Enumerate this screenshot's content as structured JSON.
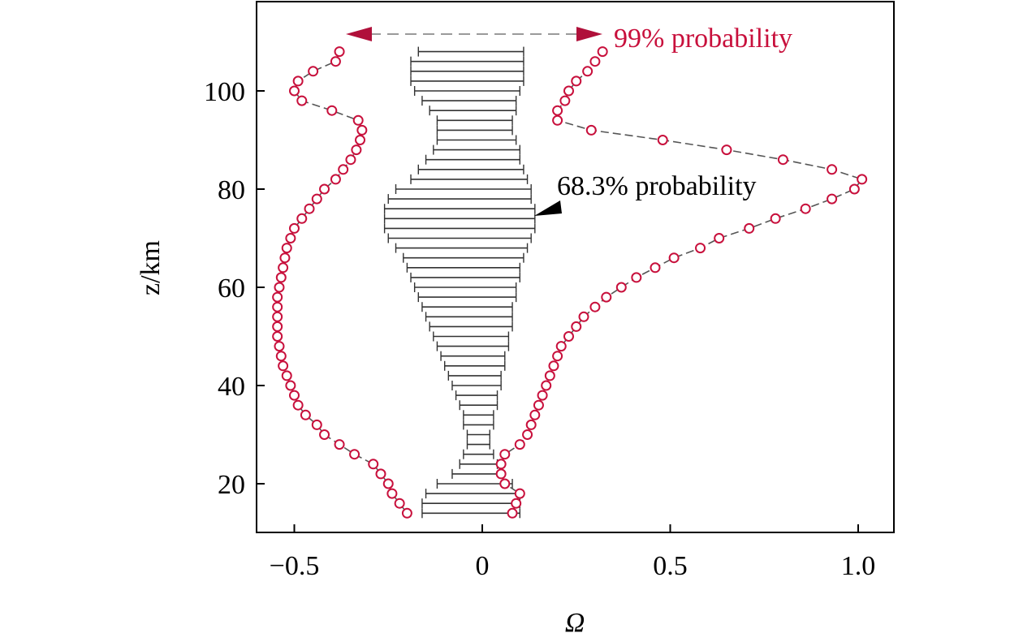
{
  "chart_data": {
    "type": "scatter",
    "title": "",
    "xlabel": "Ω",
    "ylabel": "z/km",
    "xlim": [
      -0.6,
      1.1
    ],
    "ylim": [
      10,
      114
    ],
    "x_ticks": [
      -0.5,
      0,
      0.5,
      1.0
    ],
    "x_tick_labels": [
      "−0.5",
      "0",
      "0.5",
      "1.0"
    ],
    "y_ticks": [
      20,
      40,
      60,
      80,
      100
    ],
    "y_tick_labels": [
      "20",
      "40",
      "60",
      "80",
      "100"
    ],
    "grid": false,
    "colors": {
      "outer": "#c8103c",
      "inner": "#000000",
      "arrow_line": "#999999"
    },
    "annotations": {
      "p99": "99% probability",
      "p683": "68.3% probability"
    },
    "band_683": {
      "z": [
        14,
        16,
        18,
        20,
        22,
        24,
        26,
        28,
        30,
        32,
        34,
        36,
        38,
        40,
        42,
        44,
        46,
        48,
        50,
        52,
        54,
        56,
        58,
        60,
        62,
        64,
        66,
        68,
        70,
        72,
        74,
        76,
        78,
        80,
        82,
        84,
        86,
        88,
        90,
        92,
        94,
        96,
        98,
        100,
        102,
        104,
        106,
        108
      ],
      "lower": [
        -0.16,
        -0.16,
        -0.15,
        -0.12,
        -0.08,
        -0.06,
        -0.05,
        -0.04,
        -0.04,
        -0.05,
        -0.05,
        -0.06,
        -0.07,
        -0.08,
        -0.09,
        -0.1,
        -0.11,
        -0.12,
        -0.13,
        -0.14,
        -0.15,
        -0.16,
        -0.17,
        -0.18,
        -0.19,
        -0.2,
        -0.21,
        -0.23,
        -0.25,
        -0.26,
        -0.26,
        -0.26,
        -0.25,
        -0.23,
        -0.19,
        -0.17,
        -0.15,
        -0.13,
        -0.12,
        -0.12,
        -0.12,
        -0.14,
        -0.16,
        -0.18,
        -0.19,
        -0.19,
        -0.19,
        -0.17
      ],
      "upper": [
        0.1,
        0.1,
        0.1,
        0.08,
        0.05,
        0.04,
        0.03,
        0.02,
        0.02,
        0.03,
        0.03,
        0.04,
        0.04,
        0.05,
        0.05,
        0.06,
        0.06,
        0.07,
        0.07,
        0.08,
        0.08,
        0.08,
        0.09,
        0.09,
        0.1,
        0.1,
        0.11,
        0.12,
        0.13,
        0.14,
        0.14,
        0.14,
        0.13,
        0.13,
        0.12,
        0.11,
        0.1,
        0.1,
        0.09,
        0.08,
        0.08,
        0.09,
        0.09,
        0.1,
        0.11,
        0.11,
        0.11,
        0.11
      ]
    },
    "series": [
      {
        "z": [
          14,
          16,
          18,
          20,
          22,
          24,
          26,
          28,
          30,
          32,
          34,
          36,
          38,
          40,
          42,
          44,
          46,
          48,
          50,
          52,
          54,
          56,
          58,
          60,
          62,
          64,
          66,
          68,
          70,
          72,
          74,
          76,
          78,
          80,
          82,
          84,
          86,
          88,
          90,
          92,
          94,
          96,
          98,
          100,
          102,
          104,
          106,
          108
        ],
        "values": [
          -0.2,
          -0.22,
          -0.24,
          -0.25,
          -0.27,
          -0.29,
          -0.34,
          -0.38,
          -0.42,
          -0.44,
          -0.47,
          -0.49,
          -0.5,
          -0.51,
          -0.52,
          -0.53,
          -0.535,
          -0.54,
          -0.545,
          -0.545,
          -0.545,
          -0.545,
          -0.545,
          -0.54,
          -0.535,
          -0.53,
          -0.525,
          -0.52,
          -0.51,
          -0.5,
          -0.48,
          -0.46,
          -0.44,
          -0.42,
          -0.39,
          -0.37,
          -0.35,
          -0.335,
          -0.325,
          -0.32,
          -0.33,
          -0.4,
          -0.48,
          -0.5,
          -0.49,
          -0.45,
          -0.39,
          -0.38
        ]
      },
      {
        "z": [
          14,
          16,
          18,
          20,
          22,
          24,
          26,
          28,
          30,
          32,
          34,
          36,
          38,
          40,
          42,
          44,
          46,
          48,
          50,
          52,
          54,
          56,
          58,
          60,
          62,
          64,
          66,
          68,
          70,
          72,
          74,
          76,
          78,
          80,
          82,
          84,
          86,
          88,
          90,
          92,
          94,
          96,
          98,
          100,
          102,
          104,
          106,
          108
        ],
        "values": [
          0.08,
          0.09,
          0.1,
          0.06,
          0.05,
          0.05,
          0.06,
          0.1,
          0.12,
          0.13,
          0.14,
          0.15,
          0.16,
          0.17,
          0.18,
          0.19,
          0.2,
          0.21,
          0.23,
          0.25,
          0.27,
          0.3,
          0.33,
          0.37,
          0.41,
          0.46,
          0.51,
          0.58,
          0.63,
          0.71,
          0.78,
          0.86,
          0.93,
          0.99,
          1.01,
          0.93,
          0.8,
          0.65,
          0.48,
          0.29,
          0.2,
          0.2,
          0.22,
          0.23,
          0.25,
          0.28,
          0.3,
          0.32
        ]
      }
    ]
  }
}
